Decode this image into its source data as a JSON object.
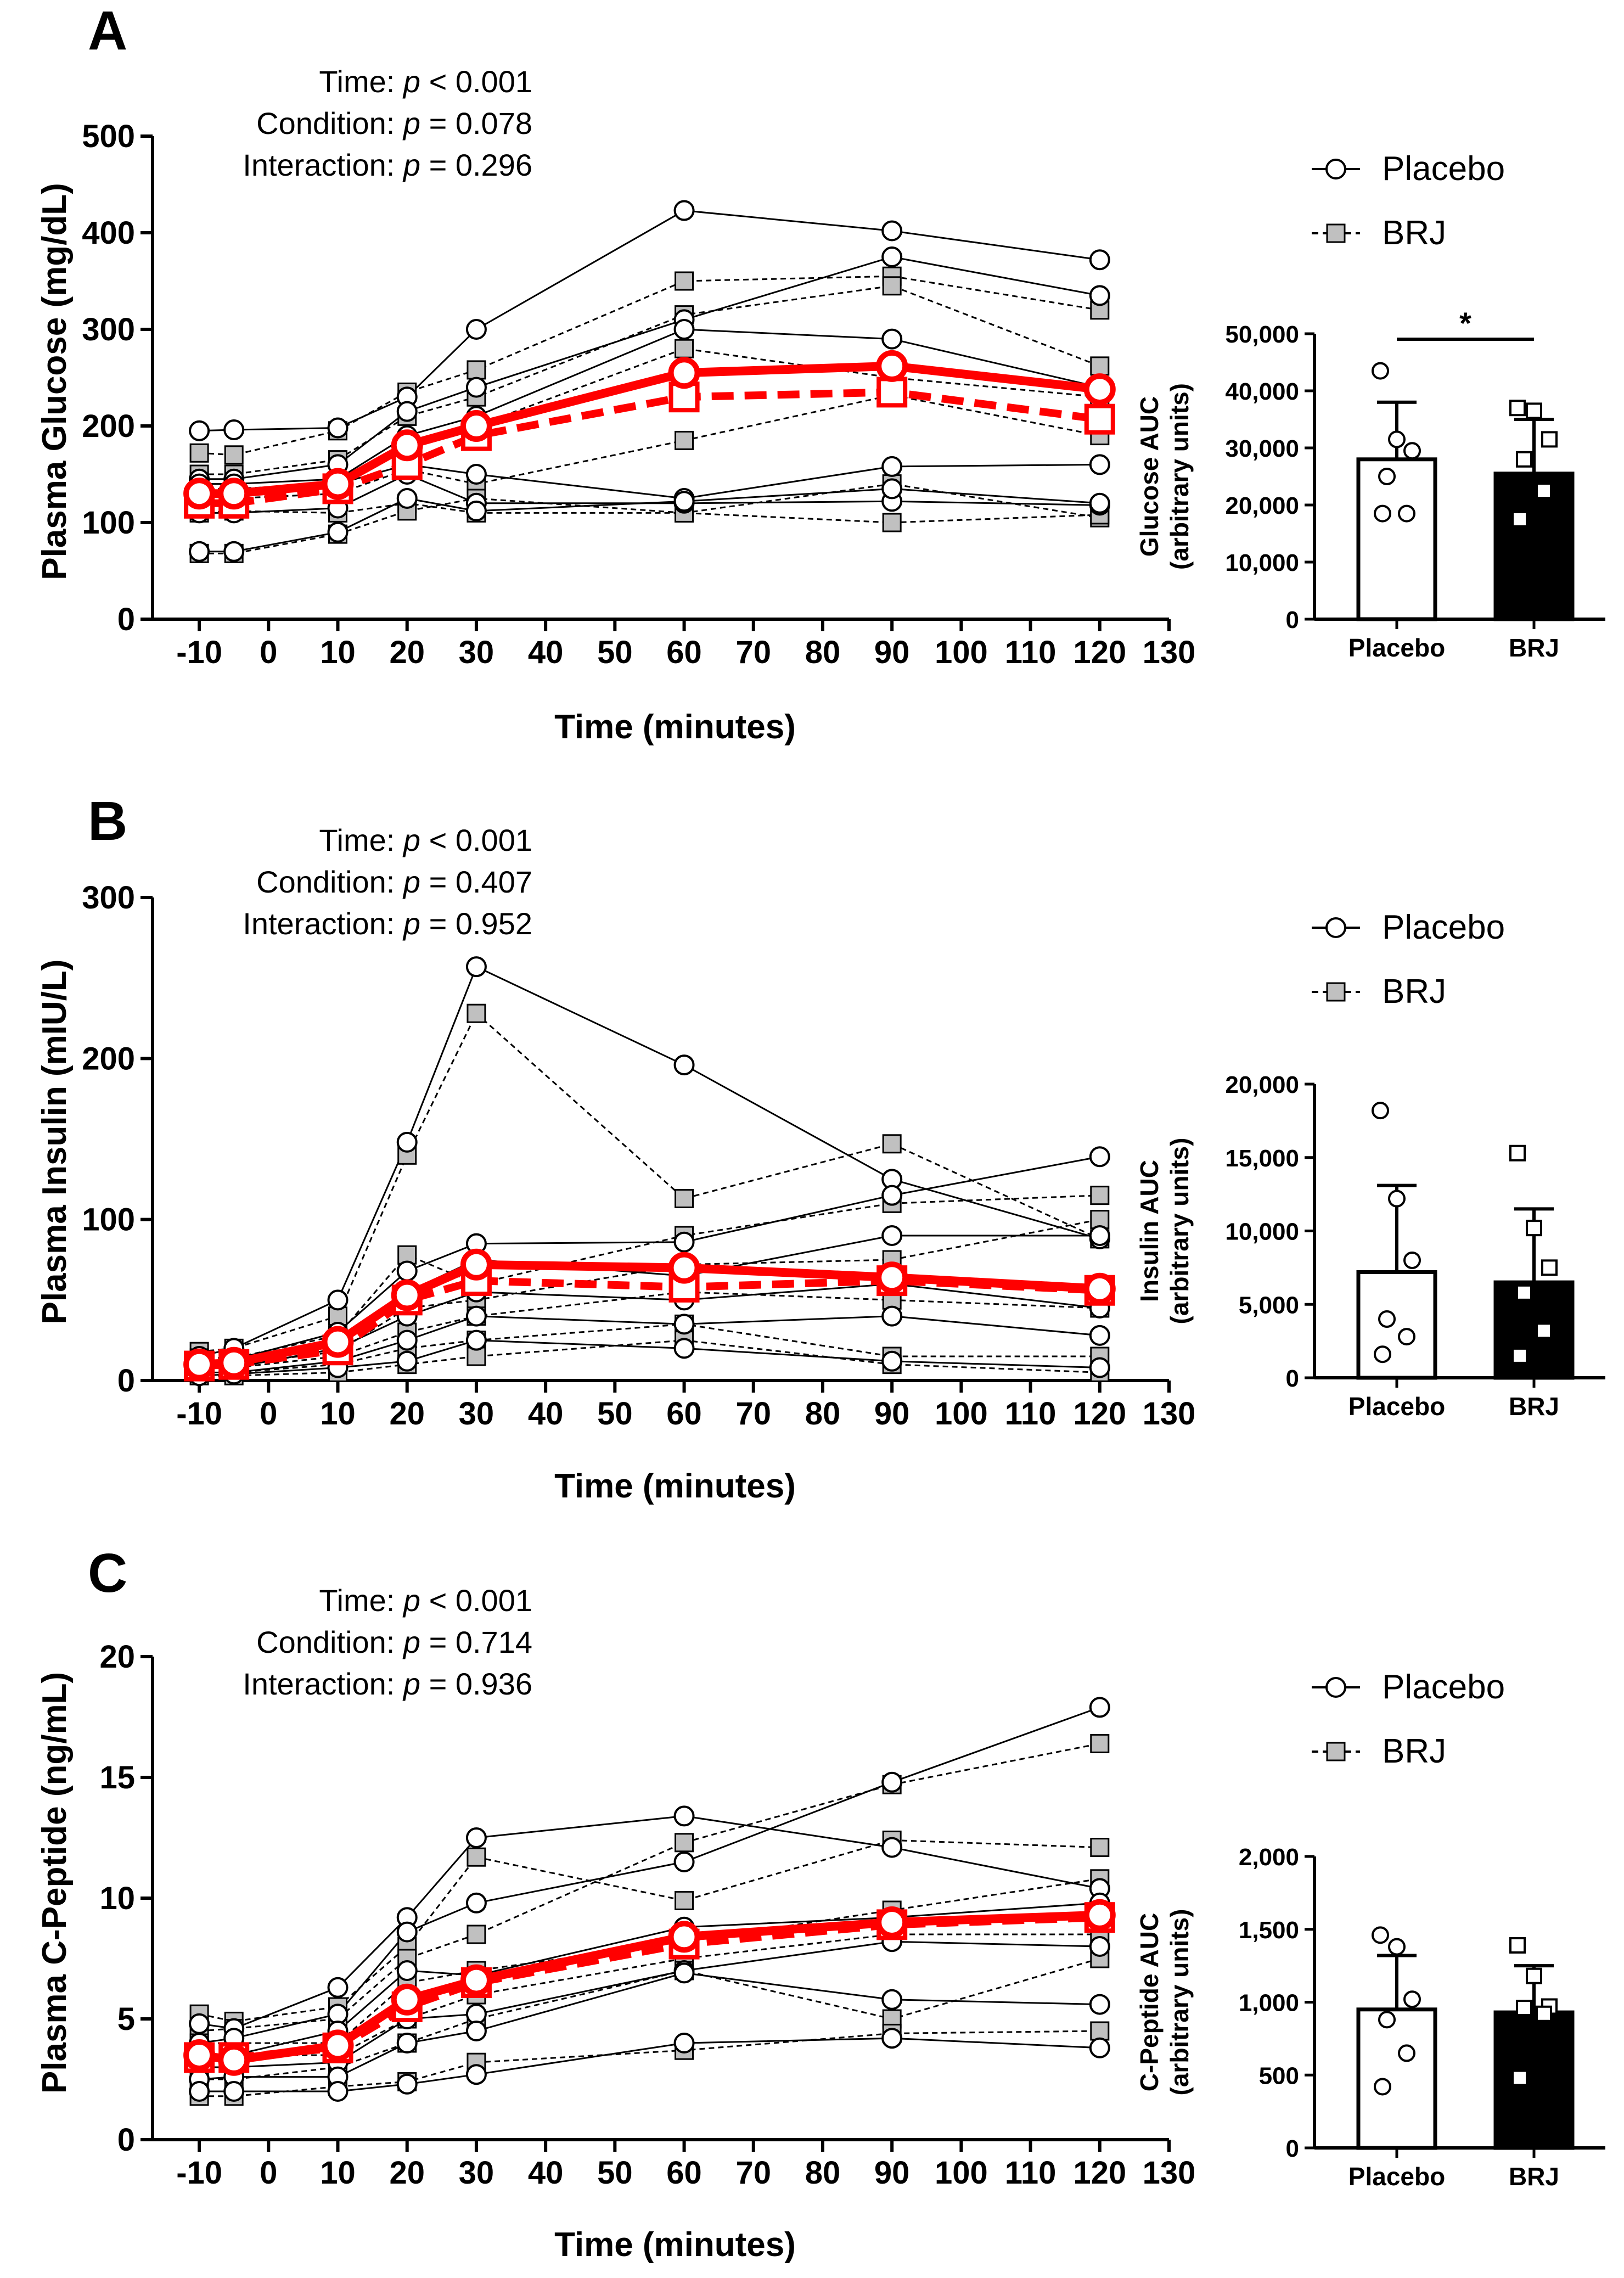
{
  "colors": {
    "mean": "#ff0000",
    "ink": "#000000",
    "brj_fill": "#c0c0c0",
    "bg": "#ffffff"
  },
  "legend": {
    "placebo": "Placebo",
    "brj": "BRJ"
  },
  "chart_data": [
    {
      "panel": "A",
      "type": "line",
      "ylabel": "Plasma Glucose (mg/dL)",
      "xlabel": "Time (minutes)",
      "ylim": [
        0,
        500
      ],
      "yticks": [
        0,
        100,
        200,
        300,
        400,
        500
      ],
      "xlim": [
        -15,
        130
      ],
      "xticks": [
        -10,
        0,
        10,
        20,
        30,
        40,
        50,
        60,
        70,
        80,
        90,
        100,
        110,
        120,
        130
      ],
      "x": [
        -10,
        -5,
        10,
        20,
        30,
        60,
        90,
        120
      ],
      "stats": {
        "time": {
          "label": "Time: ",
          "p": "p",
          "value": " < 0.001"
        },
        "condition": {
          "label": "Condition: ",
          "p": "p",
          "value": " = 0.078"
        },
        "interaction": {
          "label": "Interaction: ",
          "p": "p",
          "value": " = 0.296"
        }
      },
      "placebo_individuals": [
        [
          195,
          196,
          198,
          230,
          300,
          423,
          402,
          372
        ],
        [
          145,
          145,
          160,
          215,
          240,
          310,
          375,
          335
        ],
        [
          140,
          140,
          145,
          190,
          210,
          300,
          290,
          240
        ],
        [
          125,
          130,
          140,
          160,
          150,
          125,
          158,
          160
        ],
        [
          110,
          110,
          115,
          150,
          120,
          120,
          122,
          118
        ],
        [
          70,
          70,
          90,
          125,
          112,
          122,
          135,
          120
        ]
      ],
      "brj_individuals": [
        [
          172,
          170,
          195,
          235,
          258,
          350,
          355,
          320
        ],
        [
          150,
          150,
          165,
          210,
          230,
          315,
          345,
          262
        ],
        [
          135,
          135,
          140,
          175,
          200,
          280,
          250,
          230
        ],
        [
          120,
          125,
          130,
          155,
          140,
          185,
          232,
          190
        ],
        [
          110,
          112,
          110,
          120,
          110,
          110,
          140,
          105
        ],
        [
          68,
          68,
          88,
          112,
          125,
          110,
          100,
          108
        ]
      ],
      "placebo_mean": [
        130,
        130,
        140,
        180,
        200,
        255,
        262,
        238
      ],
      "brj_mean": [
        120,
        120,
        135,
        160,
        190,
        230,
        235,
        207
      ],
      "auc": {
        "ylabel_line1": "Glucose AUC",
        "ylabel_line2": "(arbitrary units)",
        "ylim": [
          0,
          50000
        ],
        "ytick_values": [
          0,
          10000,
          20000,
          30000,
          40000,
          50000
        ],
        "ytick_labels": [
          "0",
          "10,000",
          "20,000",
          "30,000",
          "40,000",
          "50,000"
        ],
        "categories": [
          "Placebo",
          "BRJ"
        ],
        "means": [
          28000,
          25500
        ],
        "sd": [
          10000,
          9500
        ],
        "placebo_points": [
          43500,
          31500,
          29500,
          25000,
          18500,
          18500
        ],
        "brj_points": [
          37000,
          36500,
          31500,
          28000,
          22500,
          17500
        ],
        "significance": "*"
      }
    },
    {
      "panel": "B",
      "type": "line",
      "ylabel": "Plasma Insulin (mIU/L)",
      "xlabel": "Time (minutes)",
      "ylim": [
        0,
        300
      ],
      "yticks": [
        0,
        100,
        200,
        300
      ],
      "xlim": [
        -15,
        130
      ],
      "xticks": [
        -10,
        0,
        10,
        20,
        30,
        40,
        50,
        60,
        70,
        80,
        90,
        100,
        110,
        120,
        130
      ],
      "x": [
        -10,
        -5,
        10,
        20,
        30,
        60,
        90,
        120
      ],
      "stats": {
        "time": {
          "label": "Time: ",
          "p": "p",
          "value": " < 0.001"
        },
        "condition": {
          "label": "Condition: ",
          "p": "p",
          "value": " = 0.407"
        },
        "interaction": {
          "label": "Interaction: ",
          "p": "p",
          "value": " = 0.952"
        }
      },
      "placebo_individuals": [
        [
          15,
          20,
          50,
          148,
          257,
          196,
          125,
          88
        ],
        [
          12,
          13,
          30,
          68,
          85,
          86,
          115,
          139
        ],
        [
          10,
          10,
          25,
          55,
          75,
          65,
          90,
          90
        ],
        [
          8,
          8,
          20,
          40,
          55,
          50,
          60,
          45
        ],
        [
          5,
          5,
          12,
          25,
          40,
          35,
          40,
          28
        ],
        [
          3,
          4,
          8,
          12,
          25,
          20,
          12,
          8
        ]
      ],
      "brj_individuals": [
        [
          18,
          20,
          40,
          140,
          228,
          113,
          147,
          88
        ],
        [
          14,
          14,
          28,
          78,
          60,
          90,
          110,
          115
        ],
        [
          10,
          10,
          18,
          45,
          50,
          72,
          75,
          100
        ],
        [
          8,
          8,
          15,
          30,
          40,
          55,
          50,
          45
        ],
        [
          5,
          5,
          10,
          20,
          25,
          35,
          15,
          15
        ],
        [
          3,
          3,
          5,
          10,
          15,
          25,
          10,
          5
        ]
      ],
      "placebo_mean": [
        10,
        11,
        24,
        53,
        72,
        70,
        64,
        57
      ],
      "brj_mean": [
        9,
        10,
        19,
        50,
        62,
        58,
        62,
        56
      ],
      "auc": {
        "ylabel_line1": "Insulin AUC",
        "ylabel_line2": "(arbitrary units)",
        "ylim": [
          0,
          20000
        ],
        "ytick_values": [
          0,
          5000,
          10000,
          15000,
          20000
        ],
        "ytick_labels": [
          "0",
          "5,000",
          "10,000",
          "15,000",
          "20,000"
        ],
        "categories": [
          "Placebo",
          "BRJ"
        ],
        "means": [
          7200,
          6500
        ],
        "sd": [
          5900,
          5000
        ],
        "placebo_points": [
          18200,
          12200,
          8000,
          4000,
          2800,
          1600
        ],
        "brj_points": [
          15300,
          10200,
          7500,
          5800,
          3200,
          1500
        ],
        "significance": ""
      }
    },
    {
      "panel": "C",
      "type": "line",
      "ylabel": "Plasma C-Peptide (ng/mL)",
      "xlabel": "Time (minutes)",
      "ylim": [
        0,
        20
      ],
      "yticks": [
        0,
        5,
        10,
        15,
        20
      ],
      "xlim": [
        -15,
        130
      ],
      "xticks": [
        -10,
        0,
        10,
        20,
        30,
        40,
        50,
        60,
        70,
        80,
        90,
        100,
        110,
        120,
        130
      ],
      "x": [
        -10,
        -5,
        10,
        20,
        30,
        60,
        90,
        120
      ],
      "stats": {
        "time": {
          "label": "Time: ",
          "p": "p",
          "value": " < 0.001"
        },
        "condition": {
          "label": "Condition: ",
          "p": "p",
          "value": " = 0.714"
        },
        "interaction": {
          "label": "Interaction: ",
          "p": "p",
          "value": " = 0.936"
        }
      },
      "placebo_individuals": [
        [
          4.8,
          4.6,
          6.3,
          9.2,
          12.5,
          13.4,
          12.1,
          10.4
        ],
        [
          4.0,
          4.2,
          5.2,
          8.6,
          9.8,
          11.5,
          14.8,
          17.9
        ],
        [
          3.5,
          3.5,
          4.5,
          7.0,
          6.8,
          8.8,
          9.2,
          9.8
        ],
        [
          3.0,
          3.0,
          3.2,
          5.0,
          5.2,
          7.0,
          8.2,
          8.0
        ],
        [
          2.5,
          2.6,
          2.6,
          4.0,
          4.5,
          6.9,
          5.8,
          5.6
        ],
        [
          2.0,
          2.0,
          2.0,
          2.3,
          2.7,
          4.0,
          4.2,
          3.8
        ]
      ],
      "brj_individuals": [
        [
          5.2,
          4.9,
          5.5,
          8.0,
          11.7,
          9.9,
          12.4,
          12.1
        ],
        [
          4.5,
          4.6,
          5.0,
          7.5,
          8.5,
          12.3,
          14.7,
          16.4
        ],
        [
          4.0,
          4.0,
          4.0,
          6.5,
          7.0,
          8.2,
          9.5,
          10.8
        ],
        [
          3.5,
          3.5,
          3.5,
          5.0,
          6.0,
          7.5,
          8.5,
          8.5
        ],
        [
          2.5,
          2.5,
          3.0,
          4.0,
          5.0,
          7.0,
          5.0,
          7.5
        ],
        [
          1.8,
          1.8,
          2.2,
          2.4,
          3.2,
          3.7,
          4.4,
          4.5
        ]
      ],
      "placebo_mean": [
        3.5,
        3.3,
        3.9,
        5.8,
        6.6,
        8.4,
        9.0,
        9.3
      ],
      "brj_mean": [
        3.4,
        3.4,
        3.8,
        5.5,
        6.5,
        8.1,
        8.9,
        9.2
      ],
      "auc": {
        "ylabel_line1": "C-Peptide AUC",
        "ylabel_line2": "(arbitrary units)",
        "ylim": [
          0,
          2000
        ],
        "ytick_values": [
          0,
          500,
          1000,
          1500,
          2000
        ],
        "ytick_labels": [
          "0",
          "500",
          "1,000",
          "1,500",
          "2,000"
        ],
        "categories": [
          "Placebo",
          "BRJ"
        ],
        "means": [
          950,
          930
        ],
        "sd": [
          370,
          320
        ],
        "placebo_points": [
          1460,
          1380,
          1020,
          880,
          650,
          420
        ],
        "brj_points": [
          1390,
          1180,
          970,
          960,
          920,
          480
        ],
        "significance": ""
      }
    }
  ]
}
